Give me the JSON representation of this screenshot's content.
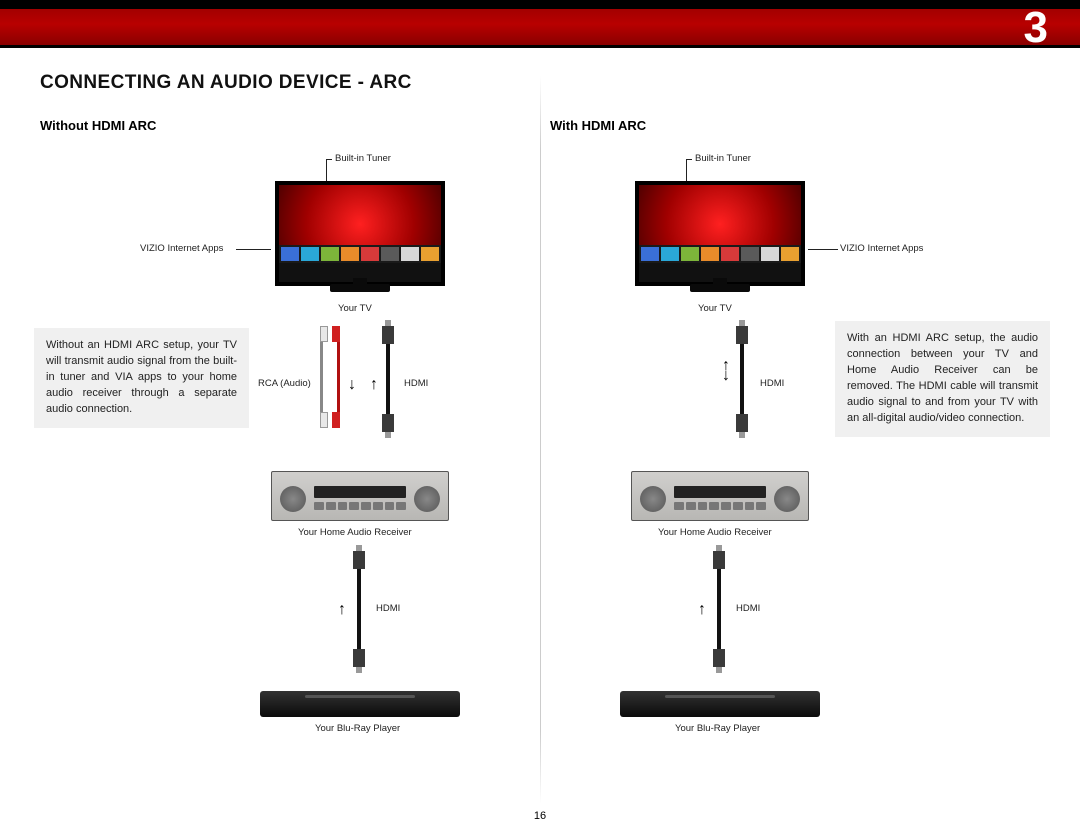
{
  "chapter_number": "3",
  "page_number": "16",
  "title": "CONNECTING AN AUDIO DEVICE - ARC",
  "left": {
    "heading": "Without HDMI ARC",
    "callouts": {
      "tuner": "Built-in Tuner",
      "apps": "VIZIO Internet  Apps",
      "tv": "Your TV",
      "rca": "RCA (Audio)",
      "hdmi1": "HDMI",
      "hdmi2": "HDMI",
      "receiver": "Your Home Audio Receiver",
      "bluray": "Your Blu-Ray Player"
    },
    "desc": "Without an HDMI ARC setup, your TV will transmit audio signal from the built-in tuner and VIA apps to your home audio receiver through a separate audio connection."
  },
  "right": {
    "heading": "With HDMI ARC",
    "callouts": {
      "tuner": "Built-in Tuner",
      "apps": "VIZIO Internet  Apps",
      "tv": "Your TV",
      "hdmi1": "HDMI",
      "hdmi2": "HDMI",
      "receiver": "Your Home Audio Receiver",
      "bluray": "Your Blu-Ray Player"
    },
    "desc": "With an HDMI ARC setup, the audio connection between your TV and Home Audio Receiver can be removed. The HDMI cable will transmit audio signal to and from your TV with an all-digital audio/video connection."
  },
  "colors": {
    "header_grad_top": "#9a0000",
    "header_grad_bot": "#8a0000",
    "desc_bg": "#f0f0f0",
    "app_colors": [
      "#3a6fd8",
      "#2aa8d8",
      "#7db53a",
      "#e88b2a",
      "#d83a3a",
      "#5a5a5a",
      "#d8d8d8",
      "#e8a030"
    ]
  }
}
